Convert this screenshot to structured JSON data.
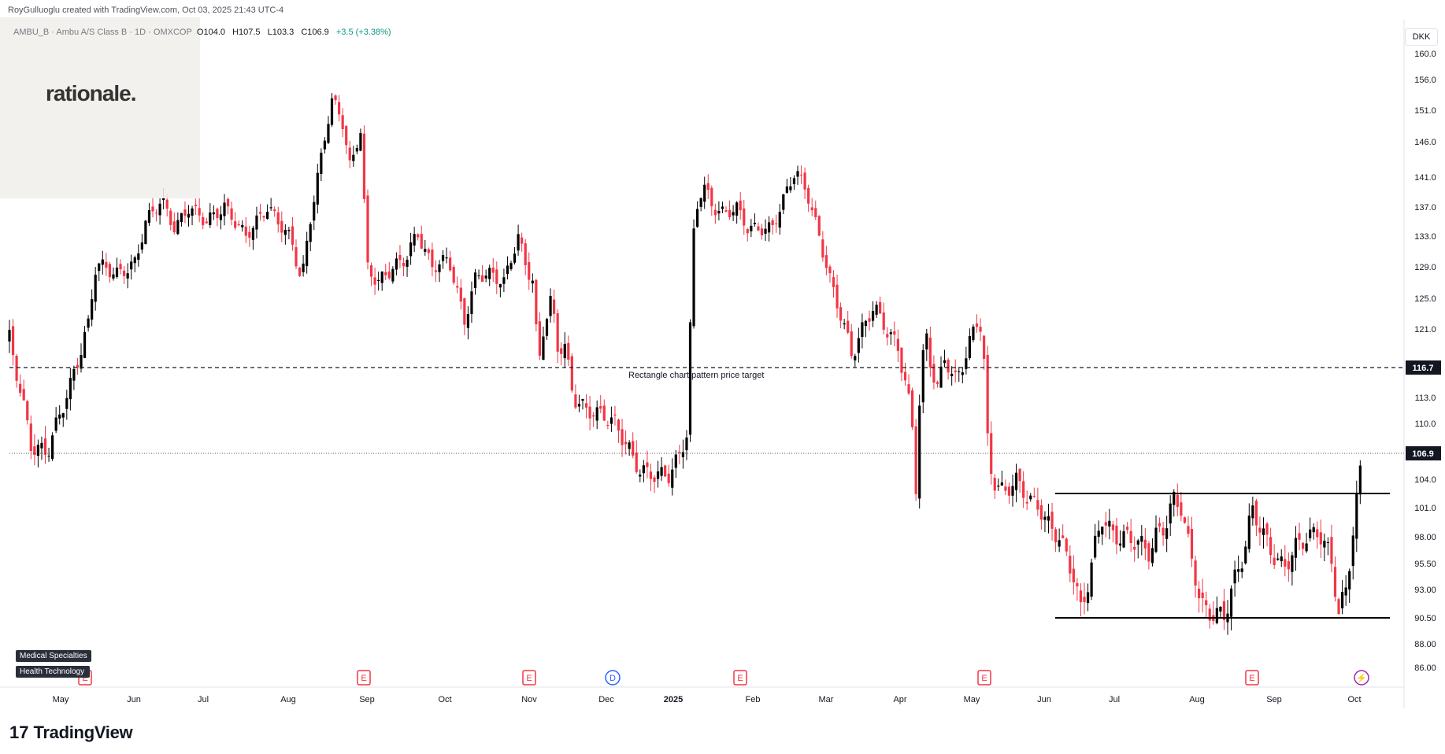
{
  "header": {
    "attribution": "RoyGulluoglu created with TradingView.com, Oct 03, 2025 21:43 UTC-4",
    "symbol_line": "AMBU_B · Ambu A/S Class B · 1D · OMXCOP",
    "ohlc": {
      "open": "O104.0",
      "high": "H107.5",
      "low": "L103.3",
      "close": "C106.9",
      "change": "+3.5 (+3.38%)"
    }
  },
  "logo_text": "rationale.",
  "currency": "DKK",
  "tags": [
    "Medical Specialties",
    "Health Technology"
  ],
  "brand": {
    "mark": "17",
    "name": "TradingView"
  },
  "colors": {
    "up": "#000000",
    "down": "#f23645",
    "text": "#131722",
    "grid": "#e0e3eb",
    "event_earnings": "#f23645",
    "event_dividend": "#2962ff",
    "event_split": "#9c27b0"
  },
  "chart_data": {
    "type": "candlestick",
    "symbol": "AMBU_B",
    "timeframe": "1D",
    "x_labels": [
      "May",
      "Jun",
      "Jul",
      "Aug",
      "Sep",
      "Oct",
      "Nov",
      "Dec",
      "2025",
      "Feb",
      "Mar",
      "Apr",
      "May",
      "Jun",
      "Jul",
      "Aug",
      "Sep",
      "Oct"
    ],
    "y_ticks": [
      "160.0",
      "156.0",
      "151.0",
      "146.0",
      "141.0",
      "137.0",
      "133.0",
      "129.0",
      "125.0",
      "121.0",
      "113.0",
      "110.0",
      "104.0",
      "101.0",
      "98.00",
      "95.50",
      "93.00",
      "90.50",
      "88.00",
      "86.00"
    ],
    "last_price": "106.9",
    "price_target": "116.7",
    "annotation": "Rectangle chart pattern price target",
    "rectangle": {
      "top": 103.0,
      "bottom": 90.5,
      "from": "Jun 2025",
      "to": "Oct 2025"
    },
    "events": [
      {
        "type": "earnings",
        "label": "E",
        "month": "May 2024"
      },
      {
        "type": "earnings",
        "label": "E",
        "month": "Sep 2024"
      },
      {
        "type": "earnings",
        "label": "E",
        "month": "Nov 2024"
      },
      {
        "type": "dividend",
        "label": "D",
        "month": "Dec 2024"
      },
      {
        "type": "earnings",
        "label": "E",
        "month": "Feb 2025"
      },
      {
        "type": "earnings",
        "label": "E",
        "month": "May 2025"
      },
      {
        "type": "earnings",
        "label": "E",
        "month": "Sep 2025"
      },
      {
        "type": "split",
        "label": "⚡",
        "month": "Oct 2025"
      }
    ],
    "anchors": [
      {
        "x": 12,
        "c": 120
      },
      {
        "x": 40,
        "c": 107.5
      },
      {
        "x": 60,
        "c": 107
      },
      {
        "x": 84,
        "c": 113
      },
      {
        "x": 112,
        "c": 121.5
      },
      {
        "x": 122,
        "c": 129.5
      },
      {
        "x": 150,
        "c": 128
      },
      {
        "x": 172,
        "c": 129.5
      },
      {
        "x": 185,
        "c": 135
      },
      {
        "x": 205,
        "c": 138
      },
      {
        "x": 222,
        "c": 134
      },
      {
        "x": 240,
        "c": 137
      },
      {
        "x": 262,
        "c": 135
      },
      {
        "x": 285,
        "c": 137
      },
      {
        "x": 312,
        "c": 133
      },
      {
        "x": 340,
        "c": 137
      },
      {
        "x": 370,
        "c": 132.5
      },
      {
        "x": 383,
        "c": 127
      },
      {
        "x": 395,
        "c": 136
      },
      {
        "x": 410,
        "c": 145
      },
      {
        "x": 422,
        "c": 153
      },
      {
        "x": 435,
        "c": 149
      },
      {
        "x": 445,
        "c": 142
      },
      {
        "x": 458,
        "c": 148
      },
      {
        "x": 466,
        "c": 129
      },
      {
        "x": 480,
        "c": 127
      },
      {
        "x": 500,
        "c": 129
      },
      {
        "x": 515,
        "c": 130
      },
      {
        "x": 530,
        "c": 133.5
      },
      {
        "x": 548,
        "c": 129
      },
      {
        "x": 570,
        "c": 130
      },
      {
        "x": 590,
        "c": 122
      },
      {
        "x": 605,
        "c": 128
      },
      {
        "x": 625,
        "c": 128
      },
      {
        "x": 640,
        "c": 127
      },
      {
        "x": 658,
        "c": 133
      },
      {
        "x": 668,
        "c": 129
      },
      {
        "x": 678,
        "c": 127
      },
      {
        "x": 683,
        "c": 116
      },
      {
        "x": 690,
        "c": 121
      },
      {
        "x": 700,
        "c": 125
      },
      {
        "x": 708,
        "c": 119
      },
      {
        "x": 718,
        "c": 119
      },
      {
        "x": 728,
        "c": 113
      },
      {
        "x": 745,
        "c": 111.5
      },
      {
        "x": 765,
        "c": 111
      },
      {
        "x": 782,
        "c": 110
      },
      {
        "x": 800,
        "c": 107
      },
      {
        "x": 812,
        "c": 105
      },
      {
        "x": 830,
        "c": 104.5
      },
      {
        "x": 850,
        "c": 104.5
      },
      {
        "x": 862,
        "c": 106.5
      },
      {
        "x": 872,
        "c": 109
      },
      {
        "x": 882,
        "c": 136
      },
      {
        "x": 893,
        "c": 140
      },
      {
        "x": 905,
        "c": 137
      },
      {
        "x": 920,
        "c": 136
      },
      {
        "x": 935,
        "c": 137
      },
      {
        "x": 950,
        "c": 134
      },
      {
        "x": 965,
        "c": 134
      },
      {
        "x": 980,
        "c": 134
      },
      {
        "x": 995,
        "c": 138
      },
      {
        "x": 1010,
        "c": 142
      },
      {
        "x": 1025,
        "c": 139
      },
      {
        "x": 1040,
        "c": 133
      },
      {
        "x": 1055,
        "c": 127
      },
      {
        "x": 1070,
        "c": 122
      },
      {
        "x": 1082,
        "c": 118
      },
      {
        "x": 1095,
        "c": 121
      },
      {
        "x": 1110,
        "c": 124
      },
      {
        "x": 1125,
        "c": 121
      },
      {
        "x": 1140,
        "c": 119
      },
      {
        "x": 1152,
        "c": 114
      },
      {
        "x": 1160,
        "c": 108.5
      },
      {
        "x": 1163,
        "c": 103
      },
      {
        "x": 1168,
        "c": 113
      },
      {
        "x": 1175,
        "c": 121
      },
      {
        "x": 1182,
        "c": 117
      },
      {
        "x": 1190,
        "c": 114
      },
      {
        "x": 1200,
        "c": 118
      },
      {
        "x": 1212,
        "c": 115
      },
      {
        "x": 1225,
        "c": 117.5
      },
      {
        "x": 1240,
        "c": 122
      },
      {
        "x": 1248,
        "c": 121
      },
      {
        "x": 1253,
        "c": 109
      },
      {
        "x": 1260,
        "c": 104
      },
      {
        "x": 1275,
        "c": 102.5
      },
      {
        "x": 1290,
        "c": 104
      },
      {
        "x": 1305,
        "c": 102
      },
      {
        "x": 1320,
        "c": 101
      },
      {
        "x": 1333,
        "c": 99
      },
      {
        "x": 1345,
        "c": 98
      },
      {
        "x": 1355,
        "c": 96
      },
      {
        "x": 1365,
        "c": 94
      },
      {
        "x": 1372,
        "c": 91
      },
      {
        "x": 1380,
        "c": 93
      },
      {
        "x": 1390,
        "c": 97
      },
      {
        "x": 1400,
        "c": 100
      },
      {
        "x": 1415,
        "c": 98
      },
      {
        "x": 1430,
        "c": 98
      },
      {
        "x": 1445,
        "c": 97.5
      },
      {
        "x": 1460,
        "c": 96.5
      },
      {
        "x": 1470,
        "c": 98.5
      },
      {
        "x": 1480,
        "c": 99
      },
      {
        "x": 1490,
        "c": 102
      },
      {
        "x": 1500,
        "c": 101
      },
      {
        "x": 1510,
        "c": 97
      },
      {
        "x": 1515,
        "c": 95.5
      },
      {
        "x": 1525,
        "c": 91.5
      },
      {
        "x": 1540,
        "c": 90.8
      },
      {
        "x": 1555,
        "c": 90.7
      },
      {
        "x": 1568,
        "c": 94
      },
      {
        "x": 1580,
        "c": 96.5
      },
      {
        "x": 1590,
        "c": 101
      },
      {
        "x": 1600,
        "c": 99
      },
      {
        "x": 1615,
        "c": 96.5
      },
      {
        "x": 1630,
        "c": 95
      },
      {
        "x": 1645,
        "c": 97
      },
      {
        "x": 1660,
        "c": 98
      },
      {
        "x": 1675,
        "c": 98.5
      },
      {
        "x": 1690,
        "c": 96
      },
      {
        "x": 1700,
        "c": 91
      },
      {
        "x": 1710,
        "c": 93
      },
      {
        "x": 1718,
        "c": 98.5
      },
      {
        "x": 1725,
        "c": 103.5
      },
      {
        "x": 1731,
        "c": 106.9
      }
    ]
  }
}
